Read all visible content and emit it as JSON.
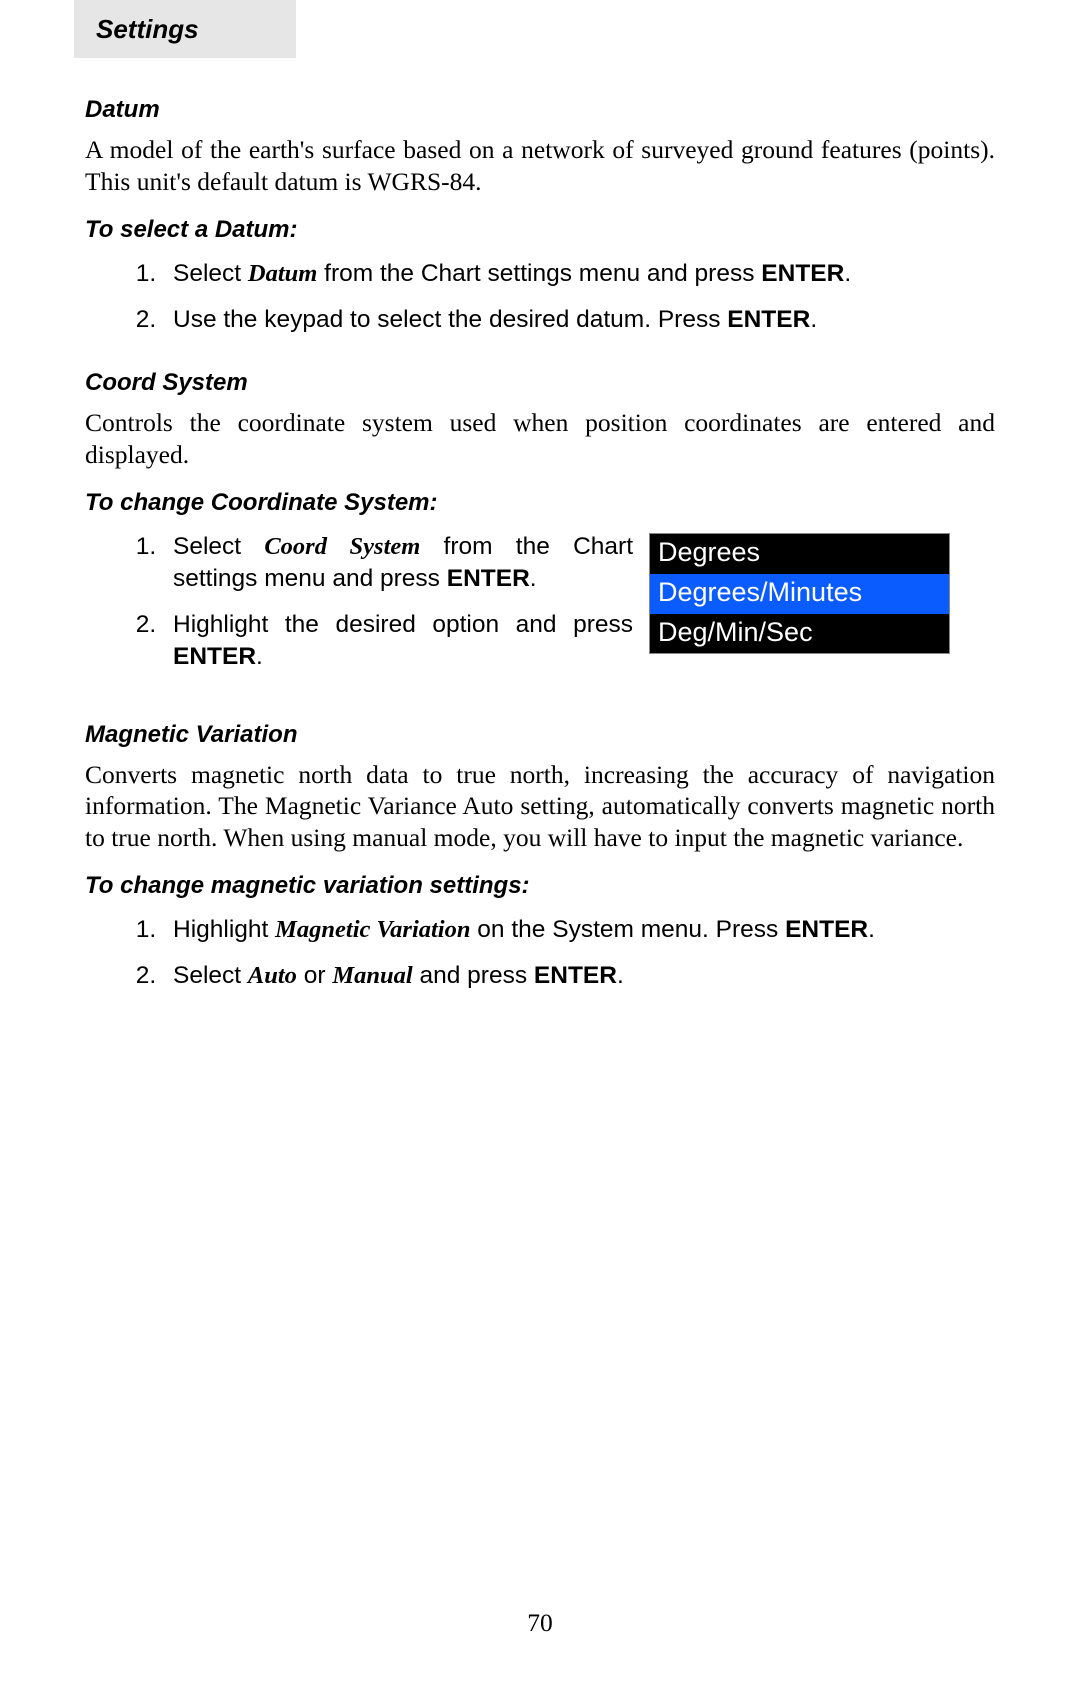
{
  "header": {
    "tab_label": "Settings"
  },
  "datum_section": {
    "title": "Datum",
    "body": "A model of the earth's surface based on a network of surveyed ground features (points). This unit's default datum is WGRS-84.",
    "howto_title": "To select a Datum:",
    "steps": {
      "s1_pre": "Select ",
      "s1_em": "Datum",
      "s1_mid": " from the Chart settings menu and press ",
      "s1_key": "ENTER",
      "s1_post": ".",
      "s2_pre": "Use the keypad to select the desired datum. Press ",
      "s2_key": "ENTER",
      "s2_post": "."
    }
  },
  "coord_section": {
    "title": "Coord System",
    "body": "Controls the coordinate system used when position coordinates are entered and displayed.",
    "howto_title": "To change Coordinate System:",
    "steps": {
      "s1_pre": "Select ",
      "s1_em": "Coord System",
      "s1_mid": " from the Chart settings menu and press ",
      "s1_key": "ENTER",
      "s1_post": ".",
      "s2_pre": "Highlight the desired option and press ",
      "s2_key": "ENTER",
      "s2_post": "."
    },
    "dropdown": {
      "options": [
        "Degrees",
        "Degrees/Minutes",
        "Deg/Min/Sec"
      ],
      "selected_index": 1,
      "bg_color": "#000000",
      "text_color": "#ffffff",
      "selected_bg": "#0a5cff"
    }
  },
  "magvar_section": {
    "title": "Magnetic Variation",
    "body": "Converts magnetic north data to true north, increasing the accuracy of navigation information. The Magnetic Variance Auto setting, automatically converts magnetic north to true north.  When using manual mode, you will have to input the magnetic variance.",
    "howto_title": "To change magnetic variation settings:",
    "steps": {
      "s1_pre": "Highlight ",
      "s1_em": "Magnetic Variation",
      "s1_mid": " on the System menu. Press ",
      "s1_key": "ENTER",
      "s1_post": ".",
      "s2_pre": "Select ",
      "s2_em1": "Auto",
      "s2_mid": " or ",
      "s2_em2": "Manual",
      "s2_mid2": " and press ",
      "s2_key": "ENTER",
      "s2_post": "."
    }
  },
  "page_number": "70"
}
